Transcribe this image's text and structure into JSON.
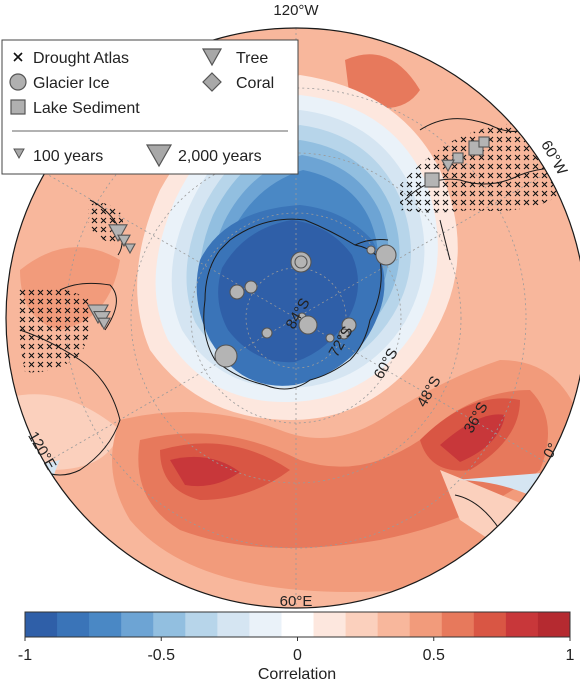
{
  "chart_data": {
    "type": "heatmap",
    "projection": "south-polar stereographic",
    "variable": "Correlation",
    "colorbar": {
      "label": "Correlation",
      "range": [
        -1,
        1
      ],
      "ticks": [
        "-1",
        "-0.5",
        "0",
        "0.5",
        "1"
      ],
      "tick_values": [
        -1,
        -0.5,
        0,
        0.5,
        1
      ],
      "colors": [
        "#2f5fa8",
        "#3a74b8",
        "#4a88c5",
        "#6da4d4",
        "#92bfe0",
        "#b7d5ea",
        "#d5e5f2",
        "#eaf2f9",
        "#ffffff",
        "#fde7de",
        "#fbd0bd",
        "#f8b79c",
        "#f29b7b",
        "#e7795c",
        "#d95644",
        "#c8373a",
        "#b52a30"
      ]
    },
    "longitude_labels": [
      "120°W",
      "60°W",
      "0°",
      "60°E",
      "120°E"
    ],
    "latitude_labels": [
      "84°S",
      "72°S",
      "60°S",
      "48°S",
      "36°S"
    ],
    "legend": {
      "placement": "top-left",
      "proxy_types": [
        {
          "label": "Drought Atlas",
          "symbol": "cross"
        },
        {
          "label": "Tree",
          "symbol": "triangle-down"
        },
        {
          "label": "Glacier Ice",
          "symbol": "circle"
        },
        {
          "label": "Coral",
          "symbol": "diamond"
        },
        {
          "label": "Lake Sediment",
          "symbol": "square"
        }
      ],
      "record_length": [
        {
          "label": "100 years",
          "years": 100
        },
        {
          "label": "2,000 years",
          "years": 2000
        }
      ]
    }
  }
}
